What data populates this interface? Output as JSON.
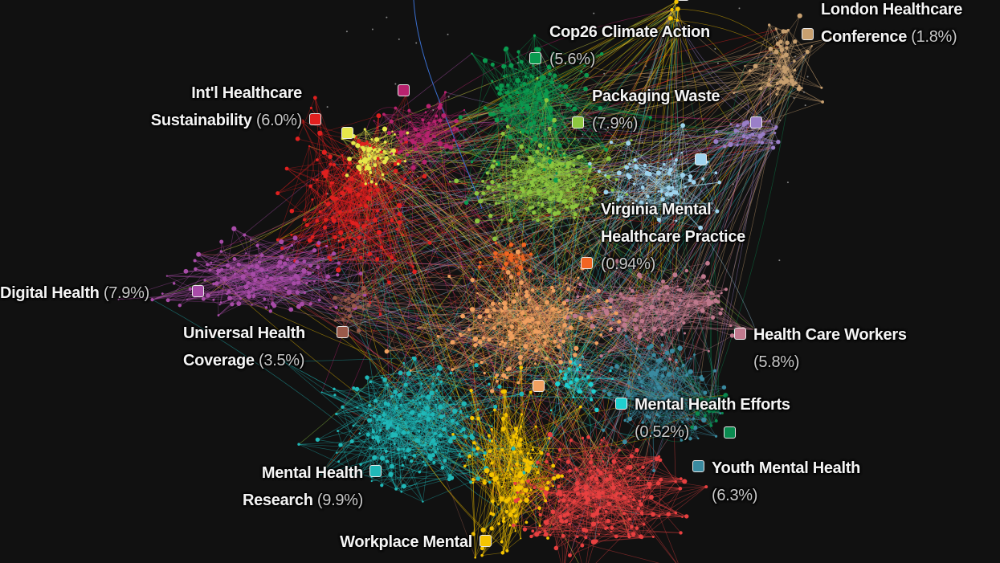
{
  "clusters": [
    {
      "id": "cop26",
      "label": {
        "lines": [
          "Cop26 Climate Action",
          ""
        ],
        "pct": "(5.6%)"
      },
      "color": "#0a9a4f"
    },
    {
      "id": "packaging",
      "label": {
        "lines": [
          "Packaging Waste",
          ""
        ],
        "pct": "(7.9%)"
      },
      "color": "#8dc63f"
    },
    {
      "id": "intl",
      "label": {
        "lines": [
          "Int'l Healthcare",
          "Sustainability"
        ],
        "pct": "(6.0%)"
      },
      "color": "#e0201f"
    },
    {
      "id": "london",
      "label": {
        "lines": [
          "London Healthcare",
          "Conference"
        ],
        "pct": "(1.8%)"
      },
      "color": "#c8a070"
    },
    {
      "id": "virginia",
      "label": {
        "lines": [
          "Virginia Mental",
          "Healthcare Practice",
          ""
        ],
        "pct": "(0.94%)"
      },
      "color": "#f26522"
    },
    {
      "id": "digital",
      "label": {
        "lines": [
          "Digital Health"
        ],
        "pct": "(7.9%)"
      },
      "color": "#a84ca8"
    },
    {
      "id": "uhc",
      "label": {
        "lines": [
          "Universal Health",
          "Coverage"
        ],
        "pct": "(3.5%)"
      },
      "color": "#9a5a4a"
    },
    {
      "id": "hcw",
      "label": {
        "lines": [
          "Health Care Workers",
          ""
        ],
        "pct": "(5.8%)"
      },
      "color": "#c07a8e"
    },
    {
      "id": "mhe",
      "label": {
        "lines": [
          "Mental Health Efforts",
          ""
        ],
        "pct": "(0.52%)"
      },
      "color": "#1fcfd0"
    },
    {
      "id": "youth",
      "label": {
        "lines": [
          "Youth Mental Health",
          ""
        ],
        "pct": "(6.3%)"
      },
      "color": "#3a8aa0"
    },
    {
      "id": "mhr",
      "label": {
        "lines": [
          "Mental Health",
          "Research"
        ],
        "pct": "(9.9%)"
      },
      "color": "#20b8b8"
    },
    {
      "id": "workplace",
      "label": {
        "lines": [
          "Workplace Mental"
        ],
        "pct": ""
      },
      "color": "#f5c400"
    },
    {
      "id": "yellowlight",
      "color": "#e6e84a"
    },
    {
      "id": "magenta",
      "color": "#b8226e"
    },
    {
      "id": "lavender",
      "color": "#9a7fc8"
    },
    {
      "id": "lightblue",
      "color": "#9fd4ee"
    },
    {
      "id": "salmon",
      "color": "#f0a060"
    },
    {
      "id": "darkgreen",
      "color": "#0a8a50"
    },
    {
      "id": "redbottom",
      "color": "#e84040"
    },
    {
      "id": "yellowtop",
      "color": "#f5c400"
    }
  ],
  "background": "#111111"
}
